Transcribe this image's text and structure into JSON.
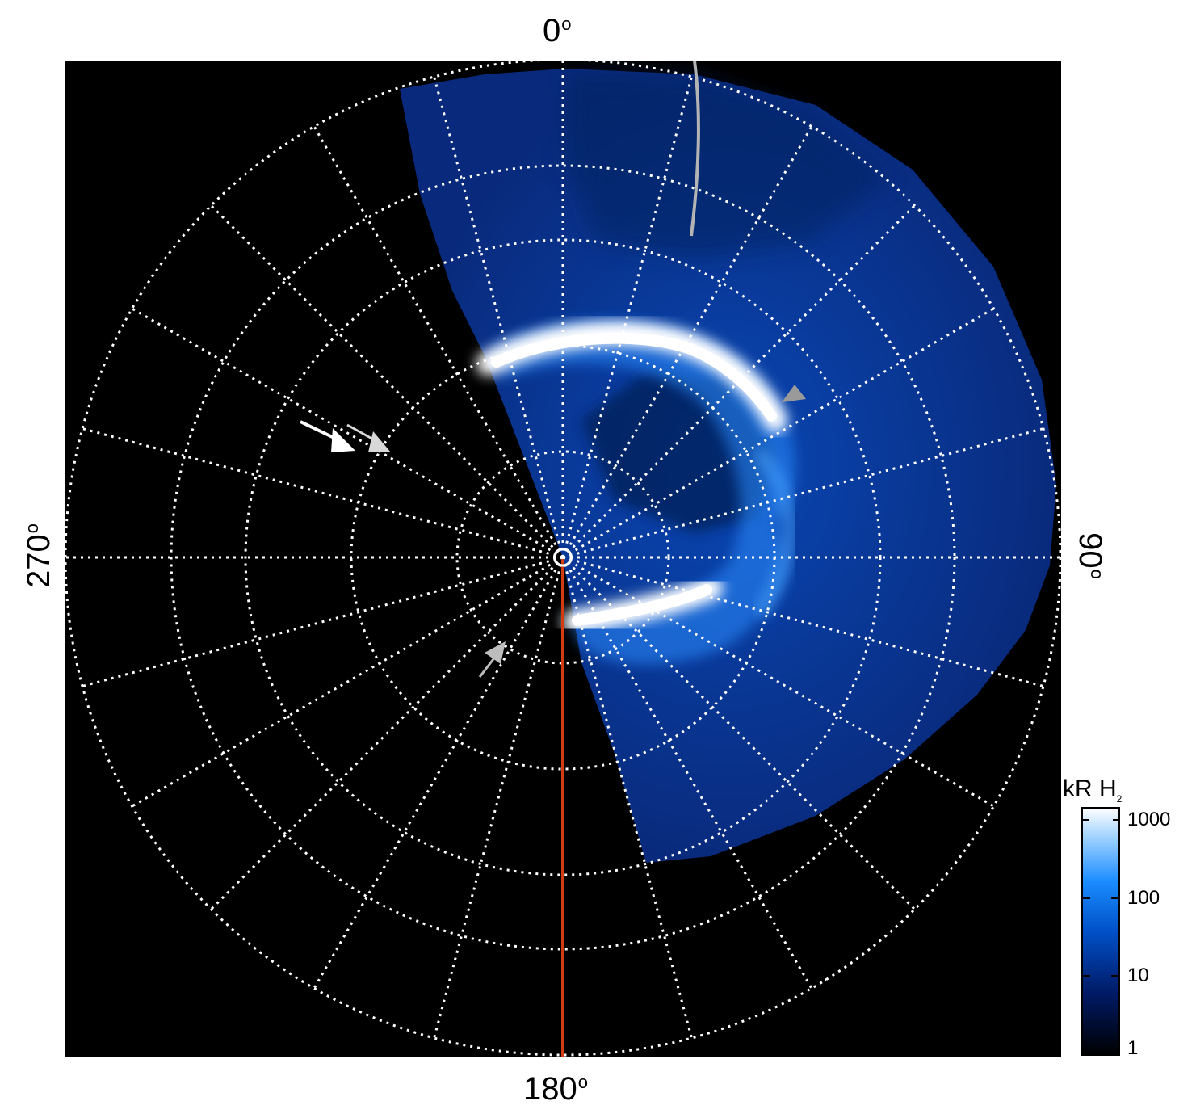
{
  "figure": {
    "axis_labels": {
      "top": "0",
      "right": "90",
      "bottom": "180",
      "left": "270",
      "degree_symbol": "o"
    },
    "colorbar": {
      "title": "kR H",
      "title_subscript": "2",
      "ticks": [
        "1000",
        "100",
        "10",
        "1"
      ],
      "scale": "log",
      "colors": [
        "#000000",
        "#001a66",
        "#0050c8",
        "#1a8cff",
        "#9fd2ff",
        "#ffffff"
      ]
    },
    "colors": {
      "background": "#000000",
      "grid": "#ffffff",
      "meridian_line": "#d23c10",
      "arc_line": "#b4b4b4",
      "emission_bright": "#ffffff",
      "emission_mid": "#2a8cff"
    }
  }
}
